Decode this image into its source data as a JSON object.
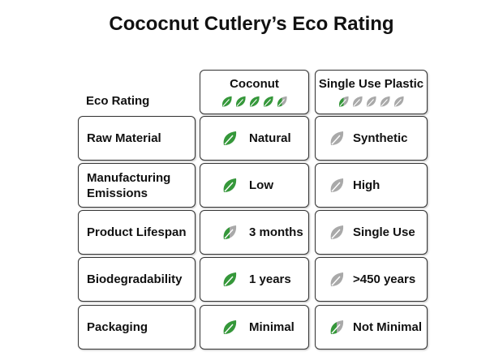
{
  "title": "Cococnut Cutlery’s Eco Rating",
  "header": {
    "label": "Eco Rating",
    "columns": [
      {
        "name": "Coconut",
        "rating": 4.5
      },
      {
        "name": "Single Use Plastic",
        "rating": 0.5
      }
    ]
  },
  "rows": [
    {
      "label": "Raw Material",
      "cells": [
        {
          "text": "Natural",
          "score": 1
        },
        {
          "text": "Synthetic",
          "score": 0
        }
      ]
    },
    {
      "label": "Manufacturing Emissions",
      "cells": [
        {
          "text": "Low",
          "score": 1
        },
        {
          "text": "High",
          "score": 0
        }
      ]
    },
    {
      "label": "Product Lifespan",
      "cells": [
        {
          "text": "3 months",
          "score": 0.5
        },
        {
          "text": "Single Use",
          "score": 0
        }
      ]
    },
    {
      "label": "Biodegradability",
      "cells": [
        {
          "text": "1 years",
          "score": 1
        },
        {
          "text": ">450 years",
          "score": 0
        }
      ]
    },
    {
      "label": "Packaging",
      "cells": [
        {
          "text": "Minimal",
          "score": 1
        },
        {
          "text": "Not Minimal",
          "score": 0.5
        }
      ]
    }
  ]
}
